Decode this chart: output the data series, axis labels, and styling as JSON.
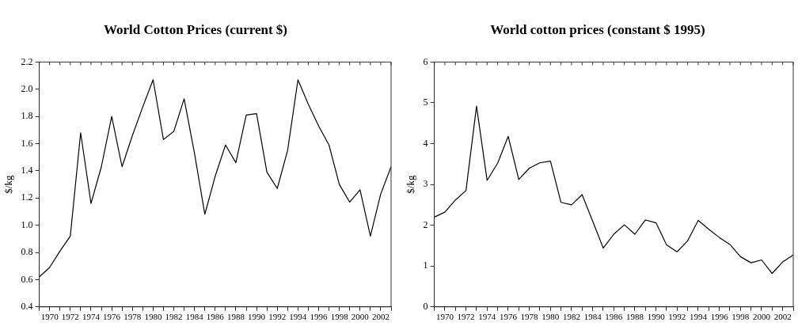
{
  "chart_data": [
    {
      "type": "line",
      "title": "World Cotton Prices (current $)",
      "ylabel": "$/kg",
      "color": "#000000",
      "marker": "none",
      "grid": false,
      "legend": false,
      "x": [
        1969,
        1970,
        1971,
        1972,
        1973,
        1974,
        1975,
        1976,
        1977,
        1978,
        1979,
        1980,
        1981,
        1982,
        1983,
        1984,
        1985,
        1986,
        1987,
        1988,
        1989,
        1990,
        1991,
        1992,
        1993,
        1994,
        1995,
        1996,
        1997,
        1998,
        1999,
        2000,
        2001,
        2002,
        2003
      ],
      "values": [
        0.62,
        0.69,
        0.81,
        0.92,
        1.68,
        1.16,
        1.43,
        1.8,
        1.43,
        1.66,
        1.87,
        2.07,
        1.63,
        1.69,
        1.93,
        1.53,
        1.08,
        1.36,
        1.59,
        1.46,
        1.81,
        1.82,
        1.39,
        1.27,
        1.55,
        2.07,
        1.89,
        1.73,
        1.59,
        1.3,
        1.17,
        1.26,
        0.92,
        1.23,
        1.43
      ],
      "xlim": [
        1969,
        2003
      ],
      "xticks": [
        {
          "value": 1969,
          "label": null
        },
        1970,
        {
          "value": 1971,
          "label": null
        },
        1972,
        {
          "value": 1973,
          "label": null
        },
        1974,
        {
          "value": 1975,
          "label": null
        },
        1976,
        {
          "value": 1977,
          "label": null
        },
        1978,
        {
          "value": 1979,
          "label": null
        },
        1980,
        {
          "value": 1981,
          "label": null
        },
        1982,
        {
          "value": 1983,
          "label": null
        },
        1984,
        {
          "value": 1985,
          "label": null
        },
        1986,
        {
          "value": 1987,
          "label": null
        },
        1988,
        {
          "value": 1989,
          "label": null
        },
        1990,
        {
          "value": 1991,
          "label": null
        },
        1992,
        {
          "value": 1993,
          "label": null
        },
        1994,
        {
          "value": 1995,
          "label": null
        },
        1996,
        {
          "value": 1997,
          "label": null
        },
        1998,
        {
          "value": 1999,
          "label": null
        },
        2000,
        {
          "value": 2001,
          "label": null
        },
        2002,
        {
          "value": 2003,
          "label": null
        }
      ],
      "ylim": [
        0.4,
        2.2
      ],
      "yticks": [
        {
          "value": 0.4,
          "label": "0.4"
        },
        {
          "value": 0.6,
          "label": "0.6"
        },
        {
          "value": 0.8,
          "label": "0.8"
        },
        {
          "value": 1.0,
          "label": "1.0"
        },
        {
          "value": 1.2,
          "label": "1.2"
        },
        {
          "value": 1.4,
          "label": "1.4"
        },
        {
          "value": 1.6,
          "label": "1.6"
        },
        {
          "value": 1.8,
          "label": "1.8"
        },
        {
          "value": 2.0,
          "label": "2.0"
        },
        {
          "value": 2.2,
          "label": "2.2"
        }
      ]
    },
    {
      "type": "line",
      "title": "World cotton prices (constant $ 1995)",
      "ylabel": "$/kg",
      "color": "#000000",
      "marker": "none",
      "grid": false,
      "legend": false,
      "x": [
        1969,
        1970,
        1971,
        1972,
        1973,
        1974,
        1975,
        1976,
        1977,
        1978,
        1979,
        1980,
        1981,
        1982,
        1983,
        1984,
        1985,
        1986,
        1987,
        1988,
        1989,
        1990,
        1991,
        1992,
        1993,
        1994,
        1995,
        1996,
        1997,
        1998,
        1999,
        2000,
        2001,
        2002,
        2003
      ],
      "values": [
        2.2,
        2.32,
        2.62,
        2.85,
        4.92,
        3.1,
        3.52,
        4.18,
        3.12,
        3.4,
        3.53,
        3.57,
        2.56,
        2.5,
        2.75,
        2.1,
        1.44,
        1.78,
        2.01,
        1.78,
        2.13,
        2.06,
        1.52,
        1.35,
        1.62,
        2.12,
        1.9,
        1.7,
        1.53,
        1.23,
        1.08,
        1.15,
        0.82,
        1.1,
        1.27
      ],
      "xlim": [
        1969,
        2003
      ],
      "xticks": [
        {
          "value": 1969,
          "label": null
        },
        1970,
        {
          "value": 1971,
          "label": null
        },
        1972,
        {
          "value": 1973,
          "label": null
        },
        1974,
        {
          "value": 1975,
          "label": null
        },
        1976,
        {
          "value": 1977,
          "label": null
        },
        1978,
        {
          "value": 1979,
          "label": null
        },
        1980,
        {
          "value": 1981,
          "label": null
        },
        1982,
        {
          "value": 1983,
          "label": null
        },
        1984,
        {
          "value": 1985,
          "label": null
        },
        1986,
        {
          "value": 1987,
          "label": null
        },
        1988,
        {
          "value": 1989,
          "label": null
        },
        1990,
        {
          "value": 1991,
          "label": null
        },
        1992,
        {
          "value": 1993,
          "label": null
        },
        1994,
        {
          "value": 1995,
          "label": null
        },
        1996,
        {
          "value": 1997,
          "label": null
        },
        1998,
        {
          "value": 1999,
          "label": null
        },
        2000,
        {
          "value": 2001,
          "label": null
        },
        2002,
        {
          "value": 2003,
          "label": null
        }
      ],
      "ylim": [
        0,
        6
      ],
      "yticks": [
        0,
        1,
        2,
        3,
        4,
        5,
        6
      ]
    }
  ]
}
